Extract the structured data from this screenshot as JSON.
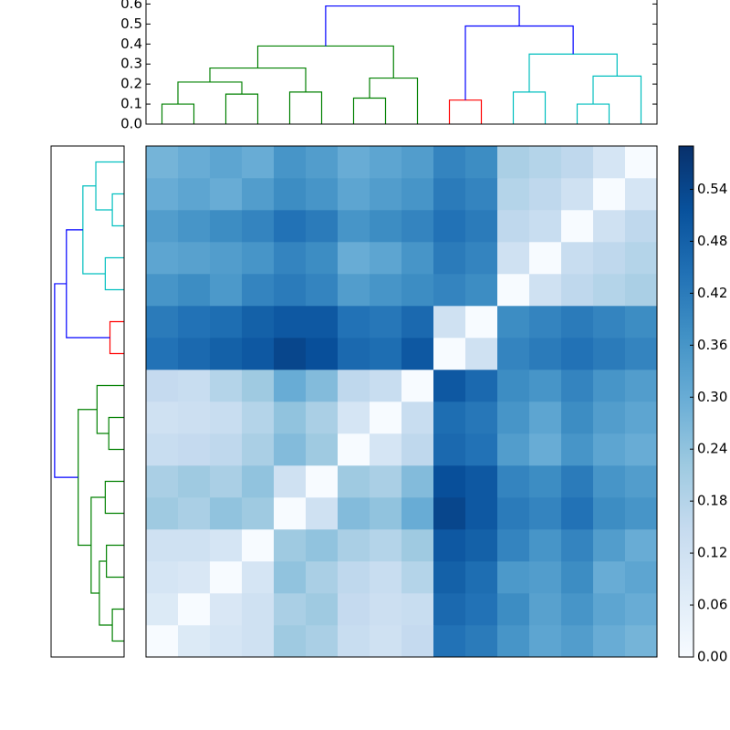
{
  "chart_data": {
    "type": "clustermap",
    "colormap": "Blues",
    "clim": [
      0,
      0.59
    ],
    "matrix": [
      [
        0,
        0.08,
        0.1,
        0.12,
        0.22,
        0.2,
        0.14,
        0.12,
        0.15,
        0.44,
        0.42,
        0.36,
        0.32,
        0.34,
        0.3,
        0.28
      ],
      [
        0.08,
        0,
        0.09,
        0.12,
        0.2,
        0.22,
        0.15,
        0.13,
        0.14,
        0.46,
        0.44,
        0.38,
        0.33,
        0.36,
        0.32,
        0.3
      ],
      [
        0.1,
        0.09,
        0,
        0.1,
        0.24,
        0.2,
        0.16,
        0.14,
        0.18,
        0.48,
        0.45,
        0.35,
        0.34,
        0.38,
        0.3,
        0.32
      ],
      [
        0.12,
        0.12,
        0.1,
        0,
        0.22,
        0.24,
        0.2,
        0.18,
        0.22,
        0.5,
        0.48,
        0.4,
        0.36,
        0.4,
        0.34,
        0.3
      ],
      [
        0.22,
        0.2,
        0.24,
        0.22,
        0,
        0.12,
        0.26,
        0.24,
        0.3,
        0.54,
        0.5,
        0.42,
        0.4,
        0.44,
        0.38,
        0.36
      ],
      [
        0.2,
        0.22,
        0.2,
        0.24,
        0.12,
        0,
        0.22,
        0.2,
        0.26,
        0.52,
        0.5,
        0.4,
        0.38,
        0.42,
        0.36,
        0.34
      ],
      [
        0.14,
        0.15,
        0.16,
        0.2,
        0.26,
        0.22,
        0,
        0.1,
        0.16,
        0.46,
        0.44,
        0.34,
        0.3,
        0.36,
        0.32,
        0.3
      ],
      [
        0.12,
        0.13,
        0.14,
        0.18,
        0.24,
        0.2,
        0.1,
        0,
        0.14,
        0.45,
        0.43,
        0.36,
        0.32,
        0.38,
        0.34,
        0.32
      ],
      [
        0.15,
        0.14,
        0.18,
        0.22,
        0.3,
        0.26,
        0.16,
        0.14,
        0,
        0.5,
        0.46,
        0.38,
        0.36,
        0.4,
        0.36,
        0.34
      ],
      [
        0.44,
        0.46,
        0.48,
        0.5,
        0.54,
        0.52,
        0.46,
        0.45,
        0.5,
        0,
        0.12,
        0.4,
        0.42,
        0.44,
        0.42,
        0.4
      ],
      [
        0.42,
        0.44,
        0.45,
        0.48,
        0.5,
        0.5,
        0.44,
        0.43,
        0.46,
        0.12,
        0,
        0.38,
        0.4,
        0.42,
        0.4,
        0.38
      ],
      [
        0.36,
        0.38,
        0.35,
        0.4,
        0.42,
        0.4,
        0.34,
        0.36,
        0.38,
        0.4,
        0.38,
        0,
        0.12,
        0.16,
        0.18,
        0.2
      ],
      [
        0.32,
        0.33,
        0.34,
        0.36,
        0.4,
        0.38,
        0.3,
        0.32,
        0.36,
        0.42,
        0.4,
        0.12,
        0,
        0.14,
        0.16,
        0.18
      ],
      [
        0.34,
        0.36,
        0.38,
        0.4,
        0.44,
        0.42,
        0.36,
        0.38,
        0.4,
        0.44,
        0.42,
        0.16,
        0.14,
        0,
        0.12,
        0.16
      ],
      [
        0.3,
        0.32,
        0.3,
        0.34,
        0.38,
        0.36,
        0.32,
        0.34,
        0.36,
        0.42,
        0.4,
        0.18,
        0.16,
        0.12,
        0,
        0.1
      ],
      [
        0.28,
        0.3,
        0.32,
        0.3,
        0.36,
        0.34,
        0.3,
        0.32,
        0.34,
        0.4,
        0.38,
        0.2,
        0.18,
        0.16,
        0.1,
        0
      ]
    ],
    "linkage": [
      [
        0,
        1,
        0.1,
        "#008000"
      ],
      [
        2,
        3,
        0.15,
        "#008000"
      ],
      [
        16,
        17,
        0.21,
        "#008000"
      ],
      [
        4,
        5,
        0.16,
        "#008000"
      ],
      [
        18,
        19,
        0.28,
        "#008000"
      ],
      [
        6,
        7,
        0.13,
        "#008000"
      ],
      [
        21,
        8,
        0.23,
        "#008000"
      ],
      [
        20,
        22,
        0.39,
        "#008000"
      ],
      [
        9,
        10,
        0.12,
        "#ff0000"
      ],
      [
        11,
        12,
        0.16,
        "#00bfbf"
      ],
      [
        13,
        14,
        0.1,
        "#00bfbf"
      ],
      [
        26,
        15,
        0.24,
        "#00bfbf"
      ],
      [
        25,
        27,
        0.35,
        "#00bfbf"
      ],
      [
        24,
        28,
        0.49,
        "#0000ff"
      ],
      [
        23,
        29,
        0.59,
        "#0000ff"
      ]
    ],
    "ylim": [
      0,
      0.62
    ],
    "yticks": [
      {
        "value": 0,
        "label": "0.0"
      },
      {
        "value": 0.1,
        "label": "0.1"
      },
      {
        "value": 0.2,
        "label": "0.2"
      },
      {
        "value": 0.3,
        "label": "0.3"
      },
      {
        "value": 0.4,
        "label": "0.4"
      },
      {
        "value": 0.5,
        "label": "0.5"
      },
      {
        "value": 0.6,
        "label": "0.6"
      }
    ],
    "cticks": [
      {
        "value": 0,
        "label": "0.00"
      },
      {
        "value": 0.06,
        "label": "0.06"
      },
      {
        "value": 0.12,
        "label": "0.12"
      },
      {
        "value": 0.18,
        "label": "0.18"
      },
      {
        "value": 0.24,
        "label": "0.24"
      },
      {
        "value": 0.3,
        "label": "0.30"
      },
      {
        "value": 0.36,
        "label": "0.36"
      },
      {
        "value": 0.42,
        "label": "0.42"
      },
      {
        "value": 0.48,
        "label": "0.48"
      },
      {
        "value": 0.54,
        "label": "0.54"
      }
    ]
  }
}
